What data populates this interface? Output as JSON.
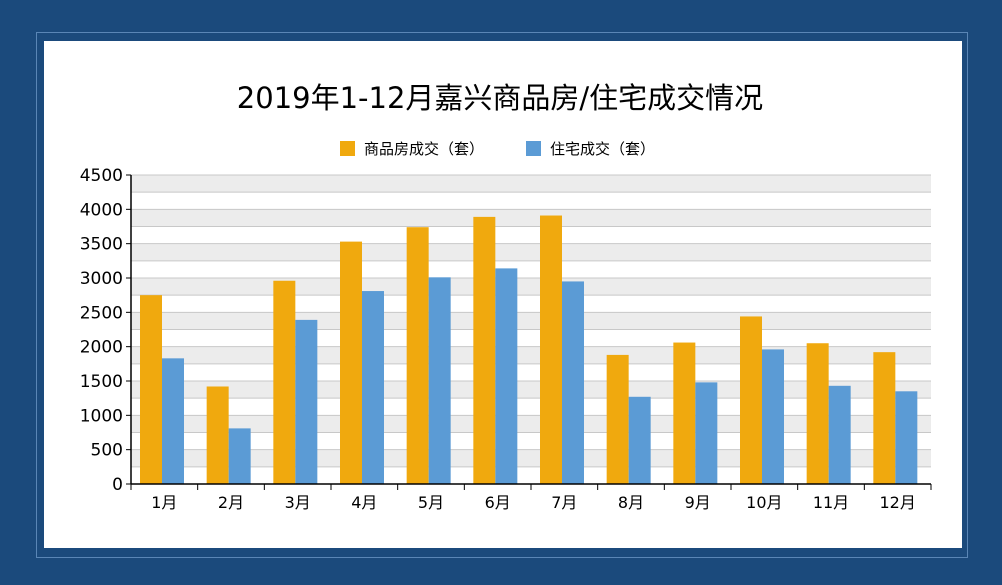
{
  "chart_data": {
    "type": "bar",
    "title": "2019年1-12月嘉兴商品房/住宅成交情况",
    "xlabel": "",
    "ylabel": "",
    "categories": [
      "1月",
      "2月",
      "3月",
      "4月",
      "5月",
      "6月",
      "7月",
      "8月",
      "9月",
      "10月",
      "11月",
      "12月"
    ],
    "series": [
      {
        "name": "商品房成交（套）",
        "color": "#f0a90e",
        "values": [
          2750,
          1420,
          2960,
          3530,
          3740,
          3890,
          3910,
          1880,
          2060,
          2440,
          2050,
          1920
        ]
      },
      {
        "name": "住宅成交（套）",
        "color": "#5b9bd5",
        "values": [
          1830,
          810,
          2390,
          2810,
          3010,
          3140,
          2950,
          1270,
          1480,
          1960,
          1430,
          1350
        ]
      }
    ],
    "ylim": [
      0,
      4500
    ],
    "yticks": [
      "0",
      "500",
      "1000",
      "1500",
      "2000",
      "2500",
      "3000",
      "3500",
      "4000",
      "4500"
    ],
    "grid": true,
    "legend_position": "top-center"
  }
}
